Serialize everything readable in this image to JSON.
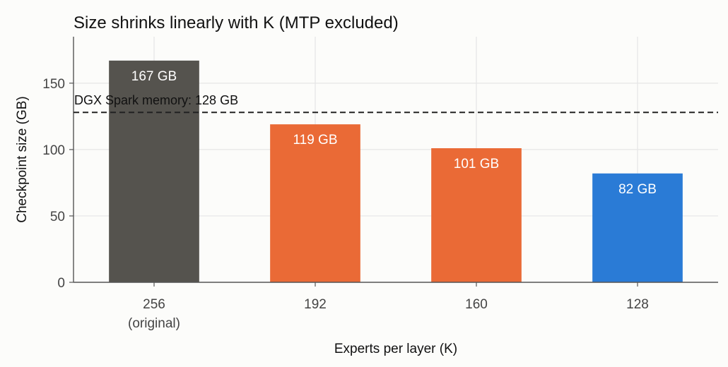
{
  "chart_data": {
    "type": "bar",
    "title": "Size shrinks linearly with K (MTP excluded)",
    "xlabel": "Experts per layer (K)",
    "ylabel": "Checkpoint size (GB)",
    "categories": [
      "256",
      "192",
      "160",
      "128"
    ],
    "category_sublabels": [
      "(original)",
      "",
      "",
      ""
    ],
    "values": [
      167,
      119,
      101,
      82
    ],
    "data_labels": [
      "167 GB",
      "119 GB",
      "101 GB",
      "82 GB"
    ],
    "bar_colors": [
      "#55534e",
      "#ea6a36",
      "#ea6a36",
      "#2a7bd6"
    ],
    "ylim": [
      0,
      185
    ],
    "yticks": [
      0,
      50,
      100,
      150
    ],
    "grid": true,
    "reference_line": {
      "value": 128,
      "label": "DGX Spark memory: 128 GB",
      "style": "dashed",
      "color": "#222222"
    }
  }
}
